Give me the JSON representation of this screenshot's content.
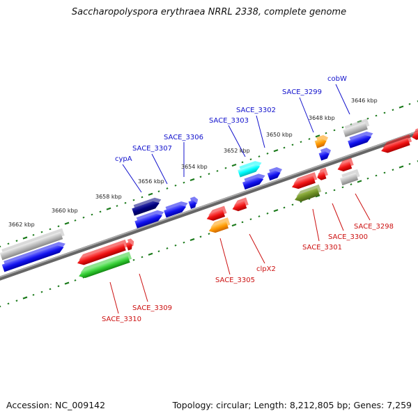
{
  "title": "Saccharopolyspora erythraea NRRL 2338, complete genome",
  "footer": {
    "accession": "Accession: NC_009142",
    "summary": "Topology: circular; Length: 8,212,805 bp; Genes: 7,259"
  },
  "colors": {
    "backbone": "#808080",
    "ticks": "#1b7a1b",
    "forward_label": "#1010cc",
    "reverse_label": "#cc1010",
    "red": "#ee1111",
    "blue": "#1111ee",
    "navy": "#000080",
    "cyan": "#00ffff",
    "orange": "#ff9900",
    "gray": "#bbbbbb",
    "green": "#33cc33",
    "olive": "#6b8e23"
  },
  "position_labels": [
    "3662 kbp",
    "3660 kbp",
    "3658 kbp",
    "3656 kbp",
    "3654 kbp",
    "3652 kbp",
    "3650 kbp",
    "3648 kbp",
    "3646 kbp"
  ],
  "forward_gene_labels": [
    "cypA",
    "SACE_3307",
    "SACE_3306",
    "SACE_3303",
    "SACE_3302",
    "SACE_3299",
    "cobW"
  ],
  "reverse_gene_labels": [
    "SACE_3310",
    "SACE_3309",
    "SACE_3305",
    "clpX2",
    "SACE_3301",
    "SACE_3300",
    "SACE_3298"
  ]
}
